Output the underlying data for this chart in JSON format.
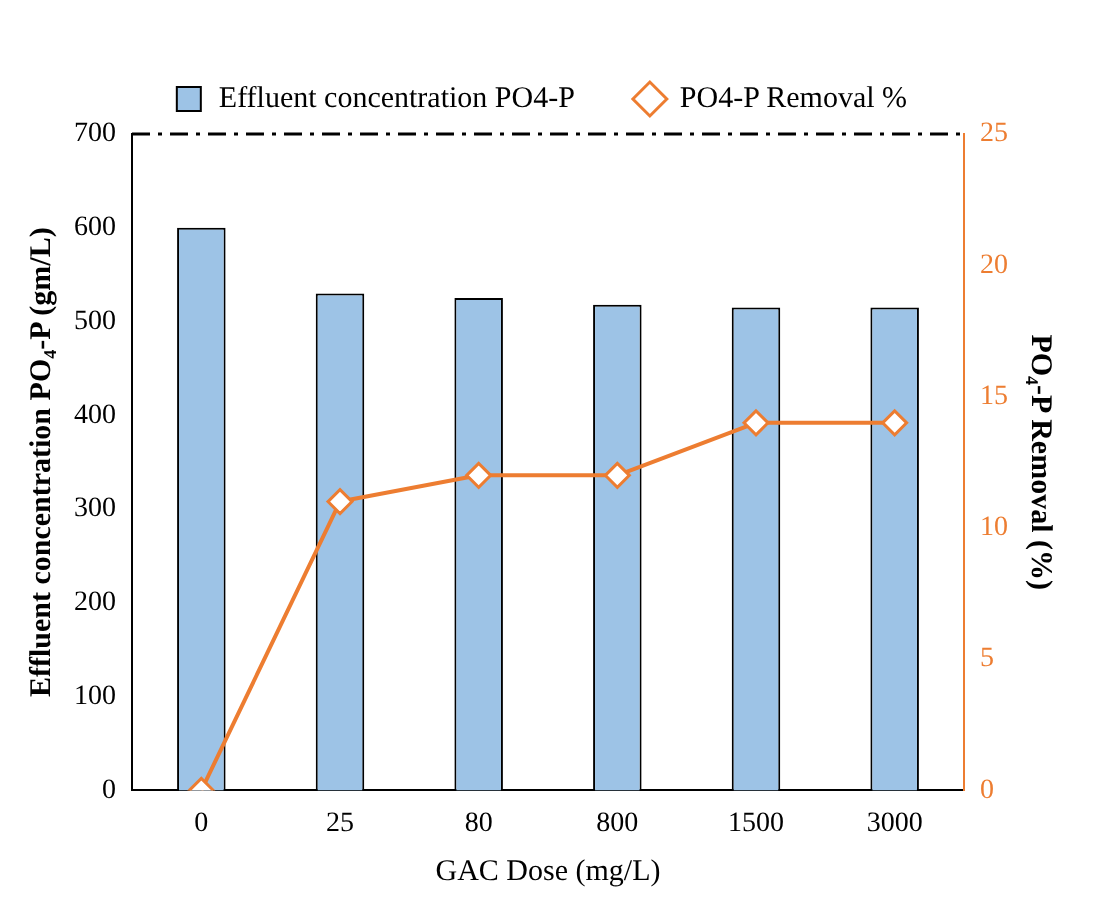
{
  "chart_data": {
    "type": "bar",
    "xlabel": "GAC Dose (mg/L)",
    "ylabel": "Effluent concentration PO₄-P (gm/L)",
    "y2label": "PO₄-P Removal (%)",
    "categories": [
      "0",
      "25",
      "80",
      "800",
      "1500",
      "3000"
    ],
    "series": [
      {
        "name": "Effluent concentration PO4-P",
        "color": "#9dc3e6",
        "values": [
          600,
          530,
          525,
          518,
          515,
          515
        ]
      },
      {
        "name": "PO4-P Removal %",
        "type": "line",
        "axis": "y2",
        "color": "#ed7d31",
        "marker": "diamond",
        "values": [
          0,
          11,
          12,
          12,
          14,
          14
        ]
      }
    ],
    "ylim": [
      0,
      700
    ],
    "yticks": [
      0,
      100,
      200,
      300,
      400,
      500,
      600,
      700
    ],
    "y2lim": [
      0,
      25
    ],
    "y2ticks": [
      0,
      5,
      10,
      15,
      20,
      25
    ],
    "ref_lines": [
      {
        "axis": "y",
        "value": 700,
        "color": "#000000",
        "line_style": "dashed"
      }
    ],
    "grid": false,
    "legend": "top"
  }
}
